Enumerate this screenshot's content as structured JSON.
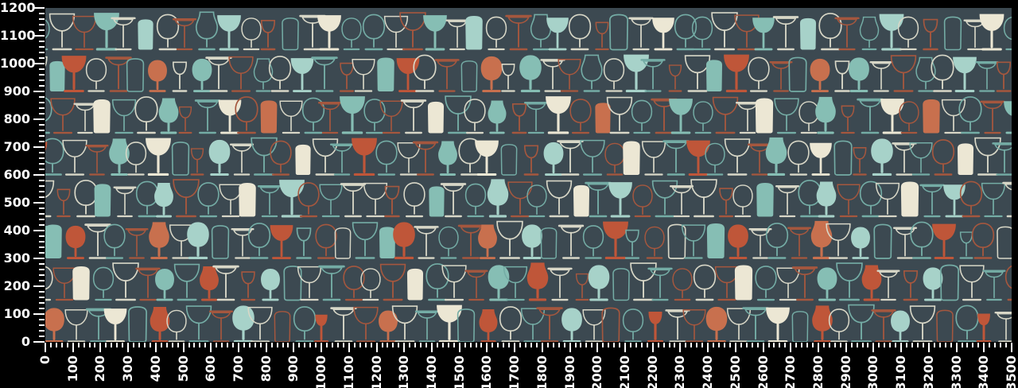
{
  "chart_data": {
    "type": "image",
    "title": "",
    "xlabel": "",
    "ylabel": "",
    "xlim": [
      0,
      3500
    ],
    "ylim": [
      0,
      1200
    ],
    "x_tick_step": 100,
    "y_tick_step": 100,
    "minor_tick_step": 20,
    "minor_ticks_per_interval": 4,
    "grid": false,
    "x_tick_labels": [
      "0",
      "100",
      "200",
      "300",
      "400",
      "500",
      "600",
      "700",
      "800",
      "900",
      "1000",
      "1100",
      "1200",
      "1300",
      "1400",
      "1500",
      "1600",
      "1700",
      "1800",
      "1900",
      "2000",
      "2100",
      "2200",
      "2300",
      "2400",
      "2500",
      "2600",
      "2700",
      "2800",
      "2900",
      "3000",
      "3100",
      "3200",
      "3300",
      "3400",
      "3500"
    ],
    "y_tick_labels": [
      "1200",
      "1100",
      "1000",
      "900",
      "800",
      "700",
      "600",
      "500",
      "400",
      "300",
      "200",
      "100",
      "0"
    ],
    "content": "Seamless wallpaper pattern of stylized stemware (wine glasses, goblets, tumblers, flat-top coupes, tulip glasses) arranged in 8 horizontal shelf rows on a dark slate background; most glasses are thin outlines in off-white, teal or rust, with scattered solid silhouettes filled in teal, light teal, rust, salmon and cream."
  },
  "figure": {
    "background": "#000000",
    "tick_color": "#ffffff",
    "label_color": "#ffffff"
  },
  "pattern": {
    "background": "#3C4951",
    "rows_count": 8,
    "palette": {
      "teal": "#86BEB4",
      "teal_light": "#A7D2C9",
      "rust": "#BF5639",
      "rust_light": "#C8704E",
      "cream": "#ECE7D4",
      "stroke_white": "#D8D7C7",
      "stroke_teal": "#74ACA5",
      "stroke_rust": "#A5573E"
    },
    "glass_shapes": [
      "wine",
      "goblet",
      "tumbler",
      "coupe",
      "tulip",
      "swine"
    ],
    "style_codes": {
      "ow": "outline white",
      "ot": "outline teal",
      "or": "outline rust",
      "ft": "fill teal",
      "fl": "fill light teal",
      "fr": "fill rust",
      "fs": "fill salmon",
      "fc": "fill cream"
    },
    "rows": [
      [
        "goblet:ot",
        "wine:ow",
        "wine:or",
        "wine:ft",
        "coupe:ow",
        "tumbler:fl",
        "goblet:ow",
        "coupe:or",
        "tulip:ot",
        "wine:fl",
        "goblet:ow",
        "swine:or",
        "tumbler:ot",
        "coupe:ow",
        "wine:fc",
        "goblet:ot"
      ],
      [
        "wine:ow",
        "tumbler:ft",
        "wine:fr",
        "goblet:ow",
        "coupe:or",
        "tumbler:ot",
        "goblet:fs",
        "swine:ow",
        "goblet:ft",
        "coupe:ow",
        "wine:or",
        "tulip:ot",
        "goblet:ow",
        "wine:fl",
        "coupe:ot",
        "swine:or"
      ],
      [
        "goblet:ot",
        "wine:or",
        "coupe:ow",
        "tumbler:fc",
        "wine:ot",
        "goblet:ow",
        "tulip:ft",
        "swine:or",
        "coupe:ot",
        "wine:fc",
        "goblet:or",
        "tumbler:fs",
        "wine:ow",
        "goblet:ot",
        "coupe:or",
        "wine:ft"
      ],
      [
        "wine:fr",
        "goblet:ot",
        "wine:ow",
        "coupe:or",
        "tulip:ft",
        "goblet:ow",
        "wine:fc",
        "tumbler:ot",
        "swine:or",
        "goblet:fl",
        "coupe:ow",
        "wine:ot",
        "goblet:or",
        "tumbler:fc",
        "wine:ow",
        "coupe:ot"
      ],
      [
        "wine:ow",
        "swine:or",
        "goblet:ow",
        "tumbler:ft",
        "coupe:ow",
        "goblet:ot",
        "tulip:fl",
        "wine:or",
        "goblet:ot",
        "wine:ow",
        "tumbler:fc",
        "coupe:ot",
        "wine:fl",
        "goblet:or",
        "wine:ot",
        "coupe:ow"
      ],
      [
        "wine:ot",
        "tumbler:ft",
        "goblet:fr",
        "coupe:ow",
        "goblet:ot",
        "coupe:or",
        "tulip:fs",
        "wine:ow",
        "goblet:fl",
        "tumbler:ot",
        "coupe:ow",
        "goblet:ot",
        "wine:fr",
        "swine:ot",
        "goblet:or",
        "tumbler:ow"
      ],
      [
        "goblet:ow",
        "wine:or",
        "tumbler:fc",
        "goblet:ot",
        "wine:ow",
        "coupe:or",
        "goblet:ft",
        "wine:ot",
        "tulip:fr",
        "coupe:ow",
        "swine:or",
        "goblet:fl",
        "tumbler:ot",
        "wine:ow",
        "coupe:ot",
        "goblet:or"
      ],
      [
        "wine:or",
        "goblet:fs",
        "wine:ow",
        "coupe:ot",
        "wine:fc",
        "tumbler:ot",
        "tulip:fr",
        "goblet:ow",
        "wine:ot",
        "coupe:or",
        "goblet:fl",
        "wine:ow",
        "tumbler:or",
        "goblet:ot",
        "swine:fr",
        "coupe:ow"
      ]
    ]
  }
}
